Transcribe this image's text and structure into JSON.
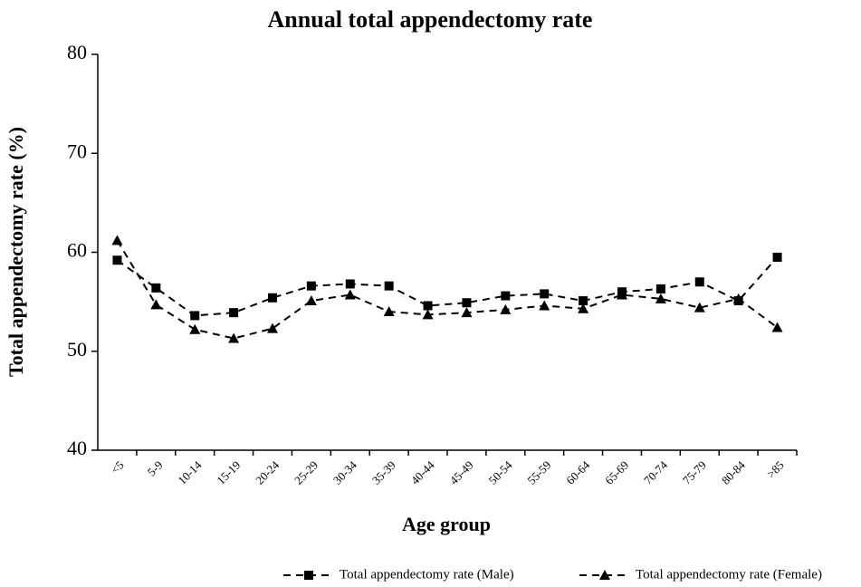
{
  "chart_data": {
    "type": "line",
    "title": "Annual total appendectomy rate",
    "x_label": "Age group",
    "y_label": "Total appendectomy rate (%)",
    "categories": [
      "<5",
      "5-9",
      "10-14",
      "15-19",
      "20-24",
      "25-29",
      "30-34",
      "35-39",
      "40-44",
      "45-49",
      "50-54",
      "55-59",
      "60-64",
      "65-69",
      "70-74",
      "75-79",
      "80-84",
      ">85"
    ],
    "series": [
      {
        "name": "Total appendectomy rate (Male)",
        "color": "#000000",
        "marker": "square",
        "values": [
          59.2,
          56.4,
          53.6,
          53.9,
          55.4,
          56.6,
          56.8,
          56.6,
          54.6,
          54.9,
          55.6,
          55.8,
          55.1,
          56.0,
          56.3,
          57.0,
          55.1,
          59.5
        ]
      },
      {
        "name": "Total appendectomy rate (Female)",
        "color": "#000000",
        "marker": "triangle",
        "values": [
          61.2,
          54.7,
          52.2,
          51.3,
          52.3,
          55.1,
          55.7,
          54.0,
          53.7,
          53.9,
          54.2,
          54.6,
          54.3,
          55.7,
          55.3,
          54.4,
          55.3,
          52.4
        ]
      }
    ],
    "ylim": [
      40,
      80
    ],
    "yticks": [
      40,
      50,
      60,
      70,
      80
    ],
    "line_style": "dashed",
    "legend": "bottom"
  }
}
